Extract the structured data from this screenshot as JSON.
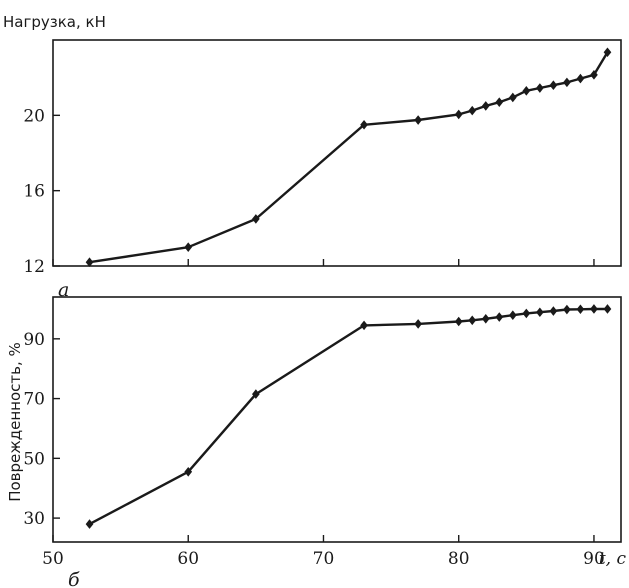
{
  "chart_data": [
    {
      "type": "line",
      "panel_label": "а",
      "ylabel": "Нагрузка, кН",
      "xlim": [
        50,
        92
      ],
      "ylim": [
        12,
        24
      ],
      "xticks": [
        50,
        60,
        70,
        80,
        90
      ],
      "yticks": [
        12,
        16,
        20
      ],
      "ytick_labels": [
        "12",
        "16",
        "20"
      ],
      "points": [
        {
          "x": 52.7,
          "y": 12.2
        },
        {
          "x": 60,
          "y": 13.0
        },
        {
          "x": 65,
          "y": 14.5
        },
        {
          "x": 73,
          "y": 19.5
        },
        {
          "x": 77,
          "y": 19.75
        },
        {
          "x": 80,
          "y": 20.05
        },
        {
          "x": 81,
          "y": 20.25
        },
        {
          "x": 82,
          "y": 20.5
        },
        {
          "x": 83,
          "y": 20.7
        },
        {
          "x": 84,
          "y": 20.95
        },
        {
          "x": 85,
          "y": 21.3
        },
        {
          "x": 86,
          "y": 21.45
        },
        {
          "x": 87,
          "y": 21.6
        },
        {
          "x": 88,
          "y": 21.75
        },
        {
          "x": 89,
          "y": 21.95
        },
        {
          "x": 90,
          "y": 22.15
        },
        {
          "x": 91,
          "y": 23.35
        }
      ]
    },
    {
      "type": "line",
      "panel_label": "б",
      "ylabel": "Поврежденность, %",
      "xlabel": "t, с",
      "xlim": [
        50,
        92
      ],
      "ylim": [
        22,
        104
      ],
      "xticks": [
        50,
        60,
        70,
        80,
        90
      ],
      "xtick_labels": [
        "50",
        "60",
        "70",
        "80",
        "90"
      ],
      "yticks": [
        30,
        50,
        70,
        90
      ],
      "ytick_labels": [
        "30",
        "50",
        "70",
        "90"
      ],
      "points": [
        {
          "x": 52.7,
          "y": 28
        },
        {
          "x": 60,
          "y": 45.5
        },
        {
          "x": 65,
          "y": 71.5
        },
        {
          "x": 73,
          "y": 94.5
        },
        {
          "x": 77,
          "y": 95
        },
        {
          "x": 80,
          "y": 95.8
        },
        {
          "x": 81,
          "y": 96.2
        },
        {
          "x": 82,
          "y": 96.7
        },
        {
          "x": 83,
          "y": 97.3
        },
        {
          "x": 84,
          "y": 97.9
        },
        {
          "x": 85,
          "y": 98.5
        },
        {
          "x": 86,
          "y": 98.9
        },
        {
          "x": 87,
          "y": 99.3
        },
        {
          "x": 88,
          "y": 99.8
        },
        {
          "x": 89,
          "y": 99.9
        },
        {
          "x": 90,
          "y": 100
        },
        {
          "x": 91,
          "y": 100
        }
      ]
    }
  ]
}
